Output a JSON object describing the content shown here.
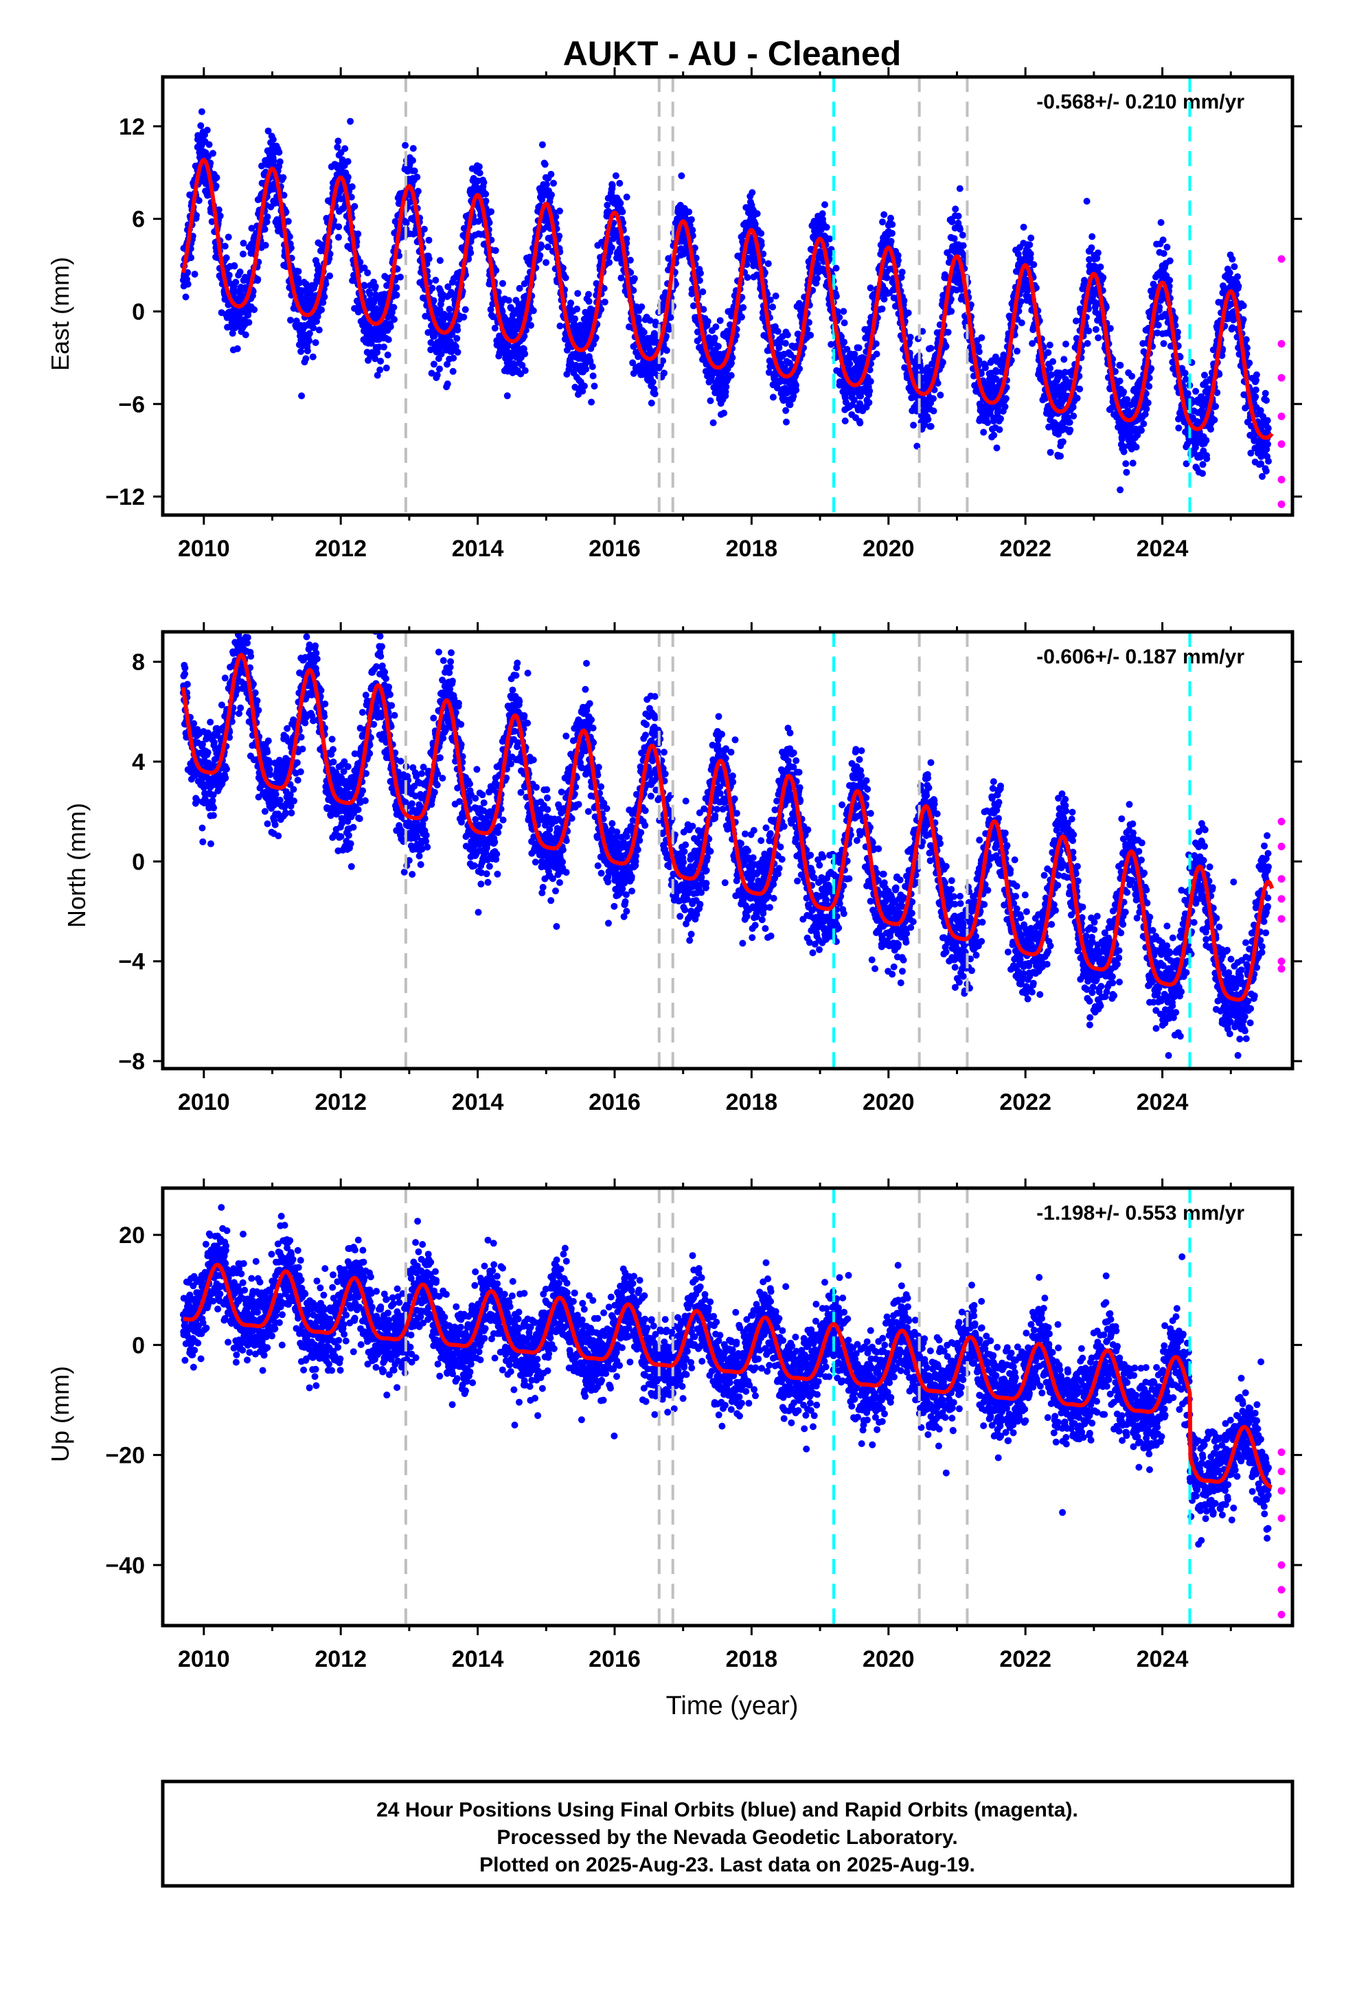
{
  "title": "AUKT  - AU - Cleaned",
  "xlabel": "Time (year)",
  "footer": {
    "line1": "24 Hour Positions Using Final Orbits (blue) and Rapid Orbits (magenta).",
    "line2": "Processed by the Nevada Geodetic Laboratory.",
    "line3": "Plotted on 2025-Aug-23. Last data on 2025-Aug-19."
  },
  "colors": {
    "final_orbits": "#0000ff",
    "rapid_orbits": "#ff00ff",
    "model": "#ff0000",
    "equipment_change": "#c0c0c0",
    "event": "#00ffff"
  },
  "chart_data": [
    {
      "type": "scatter",
      "panel": "east",
      "ylabel": "East (mm)",
      "rate_label": "-0.568+/- 0.210 mm/yr",
      "xlim": [
        2009.4,
        2025.9
      ],
      "ylim": [
        -13.2,
        15.2
      ],
      "xticks": [
        2010,
        2012,
        2014,
        2016,
        2018,
        2020,
        2022,
        2024
      ],
      "yticks": [
        -12,
        -6,
        0,
        6,
        12
      ],
      "ytick_labels": [
        "−12",
        "−6",
        "0",
        "6",
        "12"
      ],
      "grey_dashed_lines": [
        2012.95,
        2016.65,
        2016.85,
        2020.45,
        2021.15
      ],
      "cyan_dashed_lines": [
        2019.2,
        2024.4
      ],
      "model": {
        "start": 2009.7,
        "end": 2025.6,
        "ref": 2017.6,
        "offset": 0.1,
        "trend": -0.568,
        "amp_annual": 4.6,
        "peak": 0.0,
        "amp_semi": 0.8,
        "noise": 1.3,
        "mag_end": 2025.55
      },
      "rapid_values": [
        3.4,
        -2.1,
        -4.3,
        -6.8,
        -8.6,
        -10.9,
        -12.5
      ]
    },
    {
      "type": "scatter",
      "panel": "north",
      "ylabel": "North (mm)",
      "rate_label": "-0.606+/- 0.187 mm/yr",
      "xlim": [
        2009.4,
        2025.9
      ],
      "ylim": [
        -8.3,
        9.2
      ],
      "xticks": [
        2010,
        2012,
        2014,
        2016,
        2018,
        2020,
        2022,
        2024
      ],
      "yticks": [
        -8,
        -4,
        0,
        4,
        8
      ],
      "ytick_labels": [
        "−8",
        "−4",
        "0",
        "4",
        "8"
      ],
      "grey_dashed_lines": [
        2012.95,
        2016.65,
        2016.85,
        2020.45,
        2021.15
      ],
      "cyan_dashed_lines": [
        2019.2,
        2024.4
      ],
      "model": {
        "start": 2009.7,
        "end": 2025.6,
        "ref": 2017.6,
        "offset": 0.9,
        "trend": -0.606,
        "amp_annual": 2.5,
        "peak": 0.55,
        "amp_semi": 0.6,
        "noise": 0.9,
        "mag_end": 2025.55
      },
      "rapid_values": [
        1.6,
        0.6,
        -0.7,
        -1.5,
        -2.3,
        -4.0,
        -4.3
      ]
    },
    {
      "type": "scatter",
      "panel": "up",
      "ylabel": "Up (mm)",
      "rate_label": "-1.198+/- 0.553 mm/yr",
      "xlim": [
        2009.4,
        2025.9
      ],
      "ylim": [
        -51,
        28.5
      ],
      "xticks": [
        2010,
        2012,
        2014,
        2016,
        2018,
        2020,
        2022,
        2024
      ],
      "yticks": [
        -40,
        -20,
        0,
        20
      ],
      "ytick_labels": [
        "−40",
        "−20",
        "0",
        "20"
      ],
      "grey_dashed_lines": [
        2012.95,
        2016.65,
        2016.85,
        2020.45,
        2021.15
      ],
      "cyan_dashed_lines": [
        2019.2,
        2024.4
      ],
      "model": {
        "start": 2009.7,
        "end": 2025.6,
        "ref": 2017.6,
        "offset": -1.0,
        "trend": -1.198,
        "amp_annual": 5.2,
        "peak": 0.2,
        "amp_semi": 1.5,
        "noise": 3.8,
        "step_at": 2024.4,
        "step": -11.5,
        "mag_end": 2025.55
      },
      "rapid_values": [
        -19.5,
        -23.0,
        -26.5,
        -31.5,
        -40.0,
        -44.5,
        -49.0
      ]
    }
  ]
}
